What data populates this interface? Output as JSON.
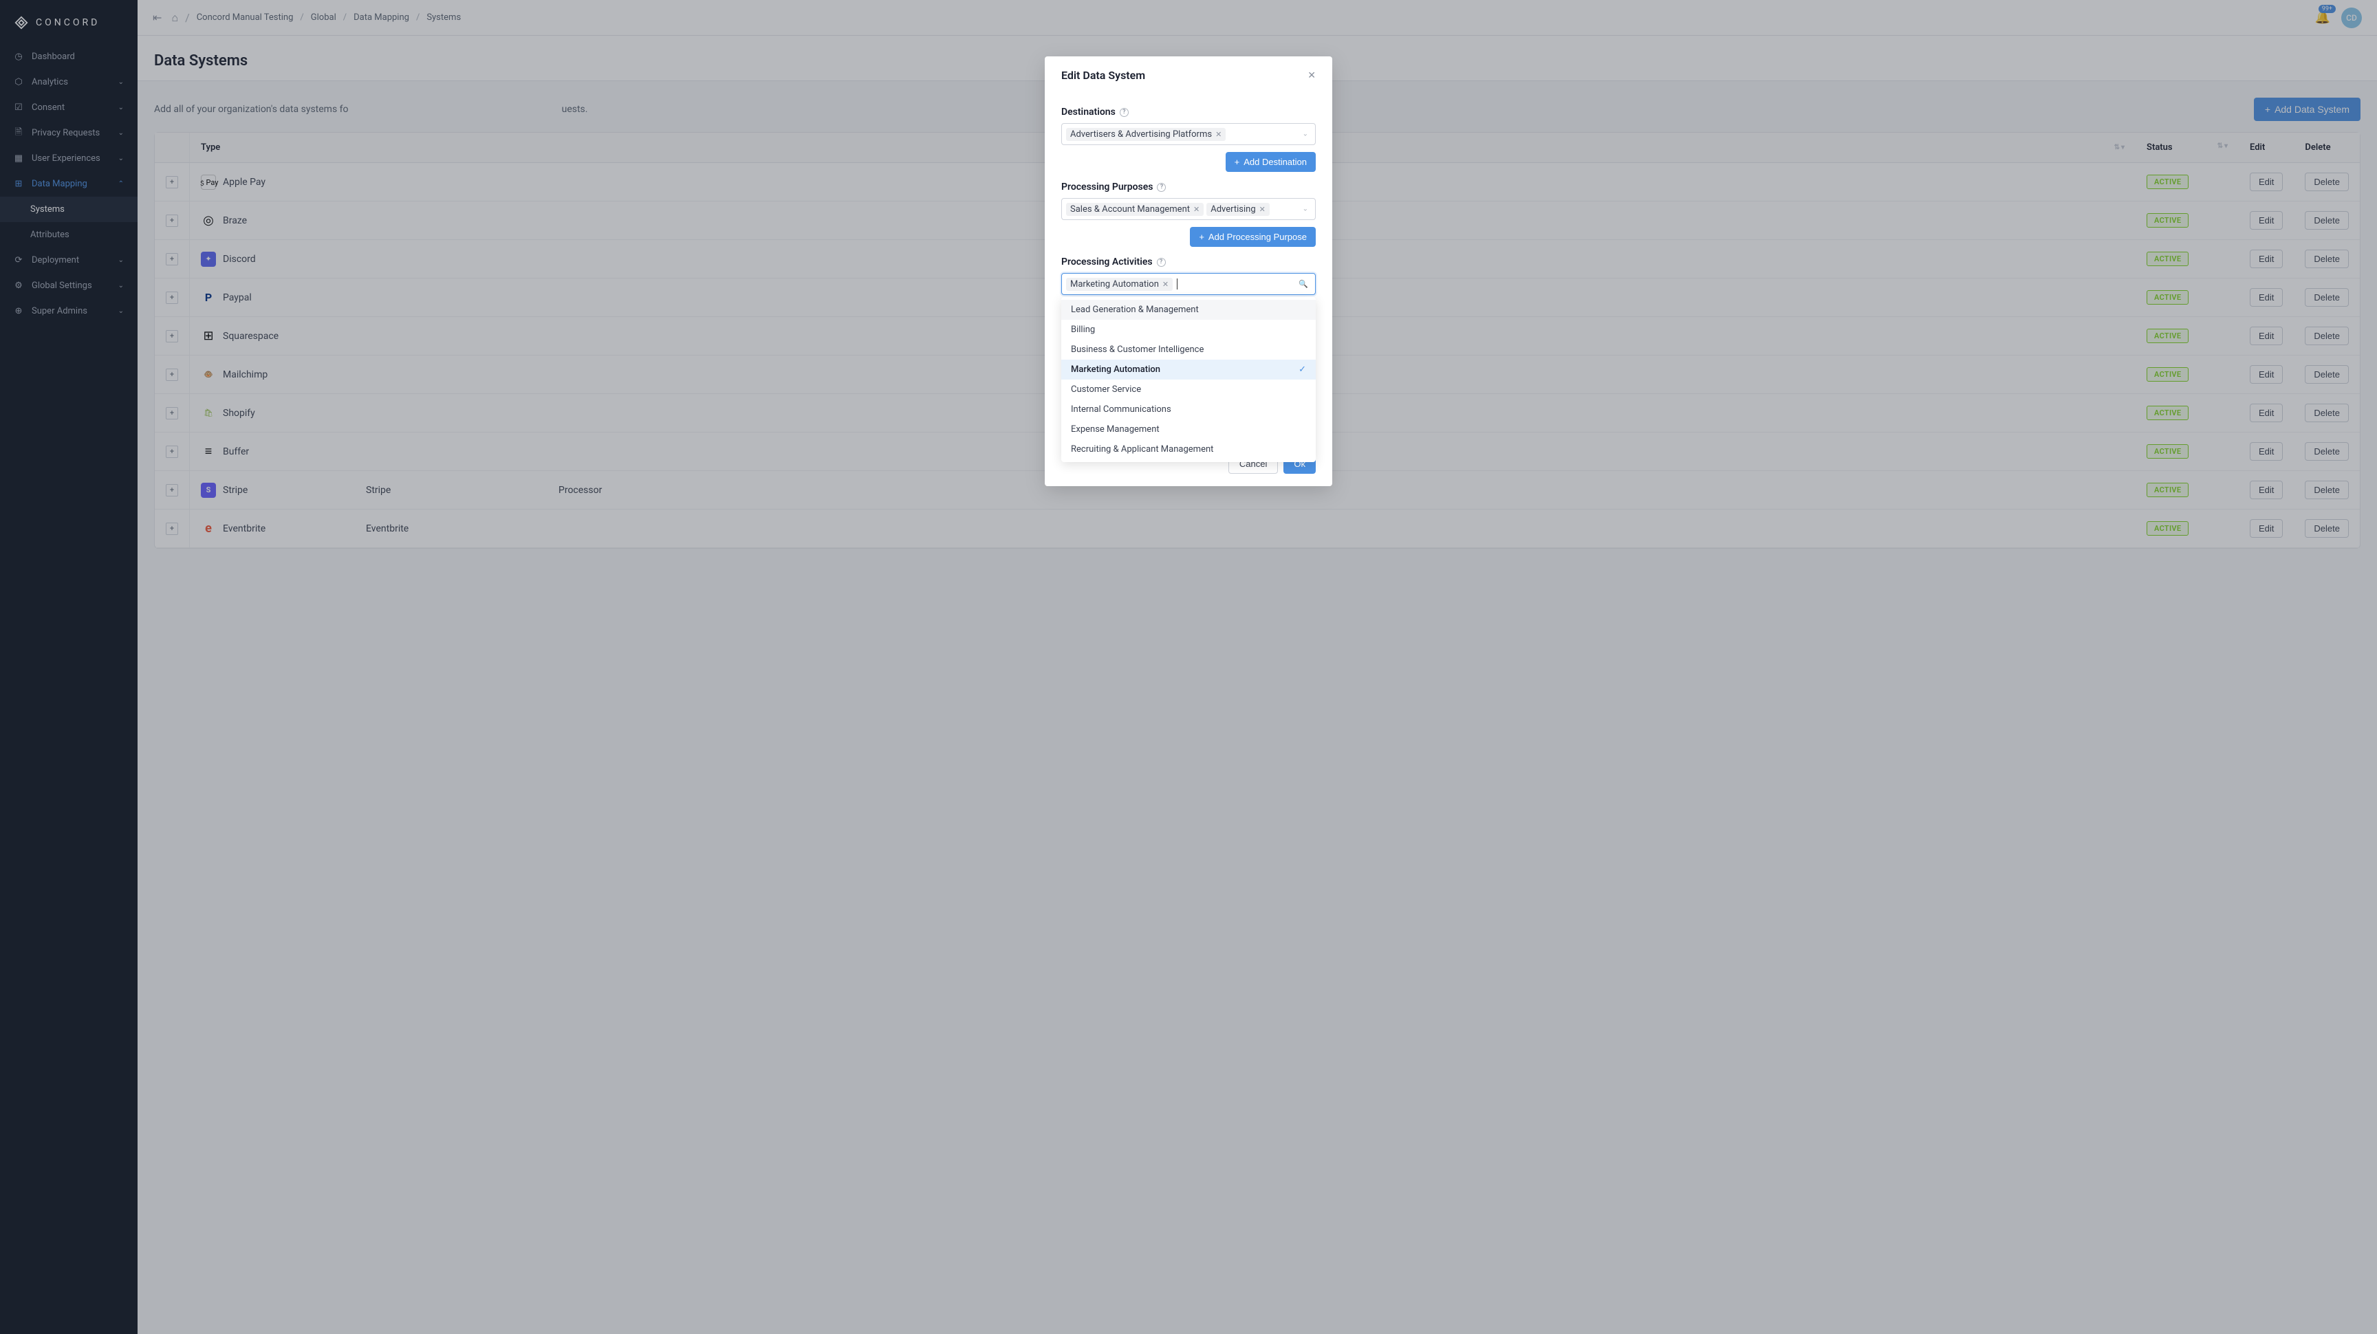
{
  "brand": {
    "name": "CONCORD"
  },
  "sidebar": {
    "items": [
      {
        "label": "Dashboard",
        "icon": "dashboard",
        "expandable": false
      },
      {
        "label": "Analytics",
        "icon": "analytics",
        "expandable": true
      },
      {
        "label": "Consent",
        "icon": "consent",
        "expandable": true
      },
      {
        "label": "Privacy Requests",
        "icon": "privacy",
        "expandable": true
      },
      {
        "label": "User Experiences",
        "icon": "ux",
        "expandable": true
      },
      {
        "label": "Data Mapping",
        "icon": "mapping",
        "expandable": true,
        "expanded": true,
        "active": true,
        "children": [
          {
            "label": "Systems",
            "current": true
          },
          {
            "label": "Attributes",
            "current": false
          }
        ]
      },
      {
        "label": "Deployment",
        "icon": "deployment",
        "expandable": true
      },
      {
        "label": "Global Settings",
        "icon": "settings",
        "expandable": true
      },
      {
        "label": "Super Admins",
        "icon": "admins",
        "expandable": true
      }
    ]
  },
  "topbar": {
    "breadcrumb": [
      "Concord Manual Testing",
      "Global",
      "Data Mapping",
      "Systems"
    ],
    "notification_badge": "99+",
    "avatar_initials": "CD"
  },
  "page": {
    "title": "Data Systems",
    "description_prefix": "Add all of your organization's data systems fo",
    "description_suffix": "uests.",
    "add_button": "Add Data System"
  },
  "table": {
    "columns": {
      "type": "Type",
      "status": "Status",
      "edit": "Edit",
      "delete": "Delete"
    },
    "edit_label": "Edit",
    "delete_label": "Delete",
    "rows": [
      {
        "name": "Apple Pay",
        "status": "ACTIVE",
        "icon_bg": "#ffffff",
        "icon_border": "1px solid #ccc",
        "icon_text": "﹩Pay",
        "icon_color": "#000"
      },
      {
        "name": "Braze",
        "status": "ACTIVE",
        "icon_bg": "transparent",
        "icon_text": "◎",
        "icon_color": "#000",
        "icon_size": "18px"
      },
      {
        "name": "Discord",
        "status": "ACTIVE",
        "icon_bg": "#5865f2",
        "icon_text": "✦",
        "icon_color": "#fff"
      },
      {
        "name": "Paypal",
        "status": "ACTIVE",
        "icon_bg": "transparent",
        "icon_text": "P",
        "icon_color": "#003087",
        "icon_weight": "bold",
        "icon_size": "16px"
      },
      {
        "name": "Squarespace",
        "status": "ACTIVE",
        "icon_bg": "transparent",
        "icon_text": "⊞",
        "icon_color": "#000",
        "icon_size": "18px"
      },
      {
        "name": "Mailchimp",
        "status": "ACTIVE",
        "icon_bg": "transparent",
        "icon_text": "🐵",
        "icon_color": "#000"
      },
      {
        "name": "Shopify",
        "status": "ACTIVE",
        "icon_bg": "transparent",
        "icon_text": "🛍",
        "icon_color": "#95bf47"
      },
      {
        "name": "Buffer",
        "status": "ACTIVE",
        "icon_bg": "transparent",
        "icon_text": "≡",
        "icon_color": "#000",
        "icon_size": "18px"
      },
      {
        "name": "Stripe",
        "status": "ACTIVE",
        "extra_col1": "Stripe",
        "extra_col2": "Processor",
        "icon_bg": "#635bff",
        "icon_text": "S",
        "icon_color": "#fff",
        "icon_weight": "bold"
      },
      {
        "name": "Eventbrite",
        "status": "ACTIVE",
        "extra_col1": "Eventbrite",
        "icon_bg": "transparent",
        "icon_text": "e",
        "icon_color": "#f05537",
        "icon_size": "18px",
        "icon_weight": "bold"
      }
    ]
  },
  "modal": {
    "title": "Edit Data System",
    "destinations": {
      "label": "Destinations",
      "tags": [
        "Advertisers & Advertising Platforms"
      ],
      "add_button": "Add Destination"
    },
    "purposes": {
      "label": "Processing Purposes",
      "tags": [
        "Sales & Account Management",
        "Advertising"
      ],
      "add_button": "Add Processing Purpose"
    },
    "activities": {
      "label": "Processing Activities",
      "tags": [
        "Marketing Automation"
      ],
      "options": [
        {
          "label": "Lead Generation & Management",
          "hover": true
        },
        {
          "label": "Billing"
        },
        {
          "label": "Business & Customer Intelligence"
        },
        {
          "label": "Marketing Automation",
          "selected": true
        },
        {
          "label": "Customer Service"
        },
        {
          "label": "Internal Communications"
        },
        {
          "label": "Expense Management"
        },
        {
          "label": "Recruiting & Applicant Management"
        }
      ]
    },
    "actions": {
      "cancel": "Cancel",
      "ok": "Ok"
    }
  },
  "colors": {
    "primary": "#4a90e2",
    "sidebar_bg": "#0d1421",
    "status_green": "#7ed321"
  }
}
